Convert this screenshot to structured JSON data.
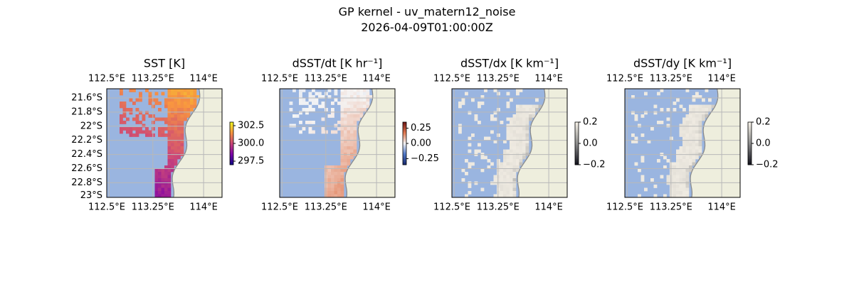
{
  "figure": {
    "title": "GP kernel - uv_matern12_noise",
    "subtitle": "2026-04-09T01:00:00Z"
  },
  "colors": {
    "ocean_nan": "#9ab5e0",
    "land": "#eeeedd",
    "coast": "#888888",
    "grid": "#b8b8b8"
  },
  "chart_data": [
    {
      "type": "heatmap",
      "title": "SST [K]",
      "xlabel": "",
      "ylabel": "",
      "x_ticks": [
        "112.5°E",
        "113.25°E",
        "114°E"
      ],
      "y_ticks": [
        "21.6°S",
        "21.8°S",
        "22°S",
        "22.2°S",
        "22.4°S",
        "22.6°S",
        "22.8°S",
        "23°S"
      ],
      "show_y_ticks": true,
      "lon_range": [
        112.5,
        114.25
      ],
      "lat_range": [
        -23.0,
        -21.5
      ],
      "colormap": "plasma",
      "colorbar": {
        "ticks": [
          "302.5",
          "300.0",
          "297.5"
        ],
        "tick_values": [
          302.5,
          300.0,
          297.5
        ],
        "range": [
          297.0,
          303.0
        ]
      }
    },
    {
      "type": "heatmap",
      "title": "dSST/dt [K hr⁻¹]",
      "xlabel": "",
      "ylabel": "",
      "x_ticks": [
        "112.5°E",
        "113.25°E",
        "114°E"
      ],
      "show_y_ticks": false,
      "colormap": "diverging",
      "colorbar": {
        "ticks": [
          "0.25",
          "0.00",
          "−0.25"
        ],
        "tick_values": [
          0.25,
          0.0,
          -0.25
        ],
        "range": [
          -0.35,
          0.35
        ]
      }
    },
    {
      "type": "heatmap",
      "title": "dSST/dx [K km⁻¹]",
      "xlabel": "",
      "ylabel": "",
      "x_ticks": [
        "112.5°E",
        "113.25°E",
        "114°E"
      ],
      "show_y_ticks": false,
      "colormap": "gray",
      "colorbar": {
        "ticks": [
          "0.2",
          "0.0",
          "−0.2"
        ],
        "tick_values": [
          0.2,
          0.0,
          -0.2
        ],
        "range": [
          -0.2,
          0.2
        ]
      }
    },
    {
      "type": "heatmap",
      "title": "dSST/dy [K km⁻¹]",
      "xlabel": "",
      "ylabel": "",
      "x_ticks": [
        "112.5°E",
        "113.25°E",
        "114°E"
      ],
      "show_y_ticks": false,
      "colormap": "gray",
      "colorbar": {
        "ticks": [
          "0.2",
          "0.0",
          "−0.2"
        ],
        "tick_values": [
          0.2,
          0.0,
          -0.2
        ],
        "range": [
          -0.2,
          0.2
        ]
      }
    }
  ]
}
